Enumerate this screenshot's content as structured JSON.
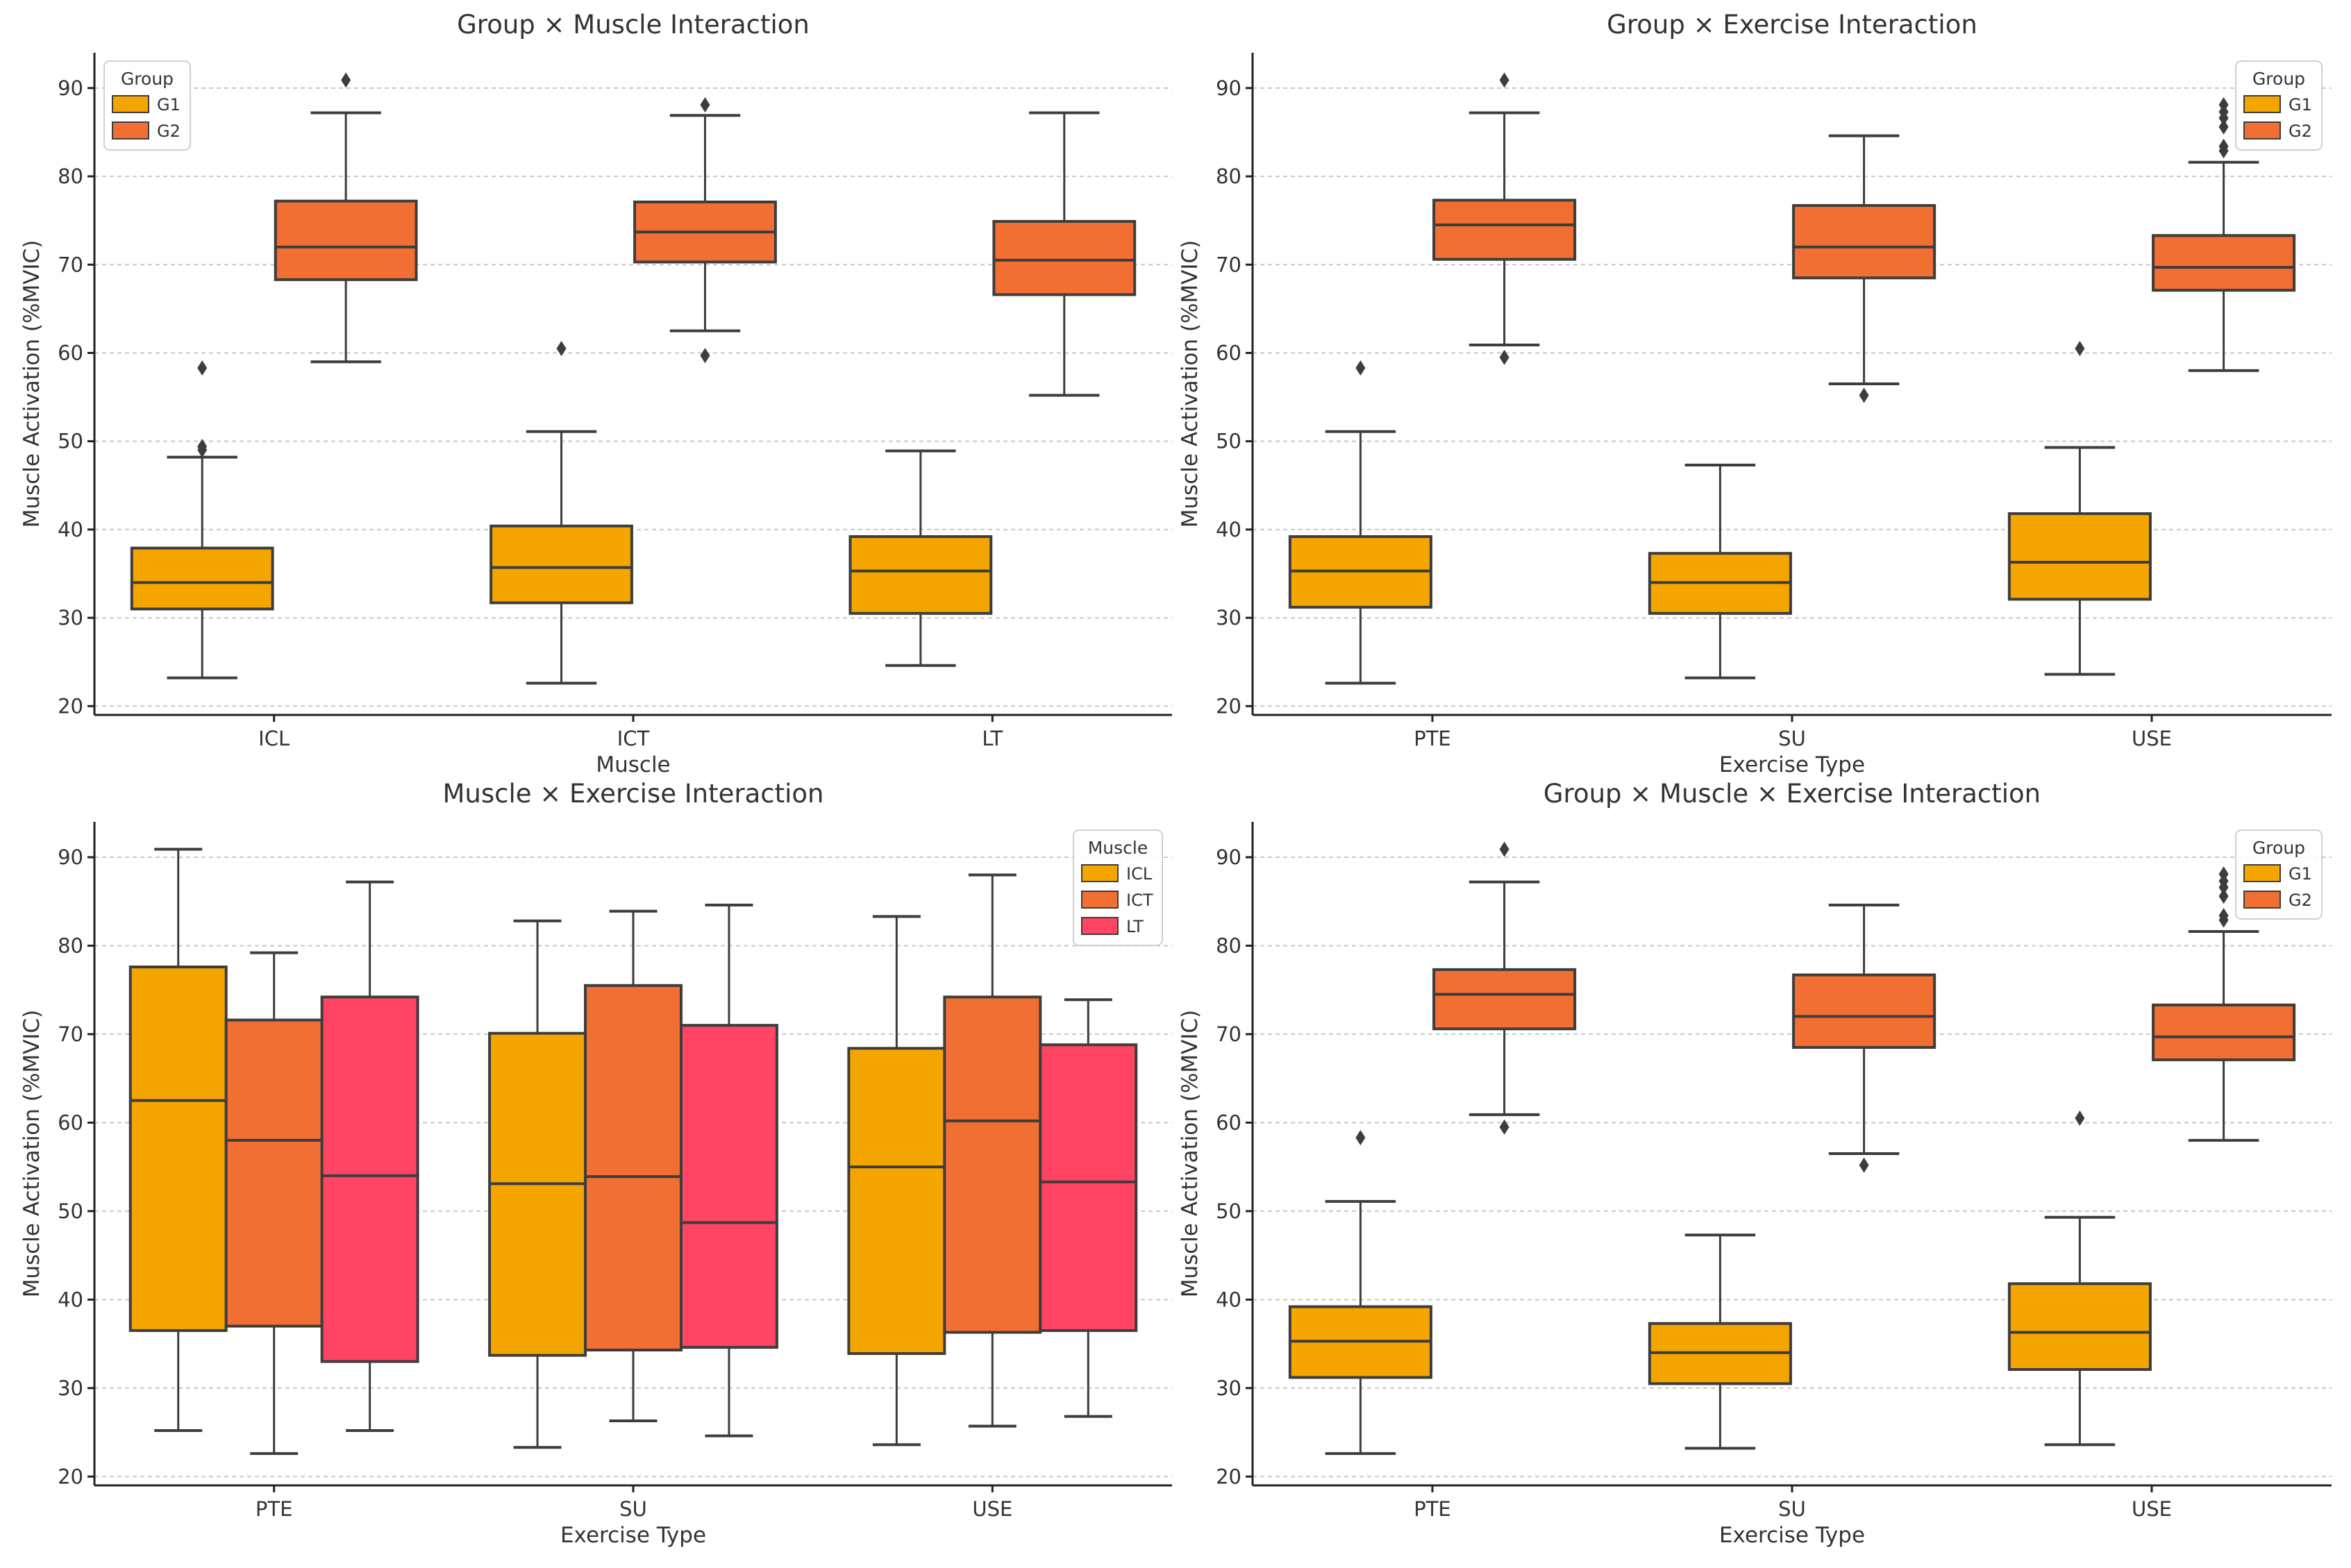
{
  "colors": {
    "G1": "#F5A500",
    "G2": "#F26F33",
    "ICL": "#F5A500",
    "ICT": "#F26F33",
    "LT": "#FF4563",
    "line": "#3d3d3d",
    "grid": "#c8c8c8"
  },
  "chart_data": [
    {
      "type": "box",
      "title": "Group × Muscle Interaction",
      "xlabel": "Muscle",
      "ylabel": "Muscle Activation (%MVIC)",
      "ylim": [
        19,
        94
      ],
      "yticks": [
        20,
        30,
        40,
        50,
        60,
        70,
        80,
        90
      ],
      "categories": [
        "ICL",
        "ICT",
        "LT"
      ],
      "legend": {
        "title": "Group",
        "position": "top-left",
        "entries": [
          "G1",
          "G2"
        ]
      },
      "series": [
        {
          "name": "G1",
          "boxes": [
            {
              "whislo": 23.2,
              "q1": 31.0,
              "med": 34.0,
              "q3": 37.9,
              "whishi": 48.2,
              "fliers": [
                49.0,
                49.4,
                58.3
              ]
            },
            {
              "whislo": 22.6,
              "q1": 31.7,
              "med": 35.7,
              "q3": 40.4,
              "whishi": 51.1,
              "fliers": [
                60.5
              ]
            },
            {
              "whislo": 24.6,
              "q1": 30.5,
              "med": 35.3,
              "q3": 39.2,
              "whishi": 48.9,
              "fliers": []
            }
          ]
        },
        {
          "name": "G2",
          "boxes": [
            {
              "whislo": 59.0,
              "q1": 68.3,
              "med": 72.0,
              "q3": 77.2,
              "whishi": 87.2,
              "fliers": [
                90.9
              ]
            },
            {
              "whislo": 62.5,
              "q1": 70.3,
              "med": 73.7,
              "q3": 77.1,
              "whishi": 86.9,
              "fliers": [
                59.7,
                88.1
              ]
            },
            {
              "whislo": 55.2,
              "q1": 66.6,
              "med": 70.5,
              "q3": 74.9,
              "whishi": 87.2,
              "fliers": []
            }
          ]
        }
      ]
    },
    {
      "type": "box",
      "title": "Group × Exercise Interaction",
      "xlabel": "Exercise Type",
      "ylabel": "Muscle Activation (%MVIC)",
      "ylim": [
        19,
        94
      ],
      "yticks": [
        20,
        30,
        40,
        50,
        60,
        70,
        80,
        90
      ],
      "categories": [
        "PTE",
        "SU",
        "USE"
      ],
      "legend": {
        "title": "Group",
        "position": "top-right",
        "entries": [
          "G1",
          "G2"
        ]
      },
      "series": [
        {
          "name": "G1",
          "boxes": [
            {
              "whislo": 22.6,
              "q1": 31.2,
              "med": 35.3,
              "q3": 39.2,
              "whishi": 51.1,
              "fliers": [
                58.3
              ]
            },
            {
              "whislo": 23.2,
              "q1": 30.5,
              "med": 34.0,
              "q3": 37.3,
              "whishi": 47.3,
              "fliers": []
            },
            {
              "whislo": 23.6,
              "q1": 32.1,
              "med": 36.3,
              "q3": 41.8,
              "whishi": 49.3,
              "fliers": [
                60.5
              ]
            }
          ]
        },
        {
          "name": "G2",
          "boxes": [
            {
              "whislo": 60.9,
              "q1": 70.6,
              "med": 74.5,
              "q3": 77.3,
              "whishi": 87.2,
              "fliers": [
                59.5,
                90.9
              ]
            },
            {
              "whislo": 56.5,
              "q1": 68.5,
              "med": 72.0,
              "q3": 76.7,
              "whishi": 84.6,
              "fliers": [
                55.2
              ]
            },
            {
              "whislo": 58.0,
              "q1": 67.1,
              "med": 69.7,
              "q3": 73.3,
              "whishi": 81.6,
              "fliers": [
                82.9,
                83.4,
                85.6,
                86.6,
                87.3,
                88.1
              ]
            }
          ]
        }
      ]
    },
    {
      "type": "box",
      "title": "Muscle × Exercise Interaction",
      "xlabel": "Exercise Type",
      "ylabel": "Muscle Activation (%MVIC)",
      "ylim": [
        19,
        94
      ],
      "yticks": [
        20,
        30,
        40,
        50,
        60,
        70,
        80,
        90
      ],
      "categories": [
        "PTE",
        "SU",
        "USE"
      ],
      "legend": {
        "title": "Muscle",
        "position": "top-right",
        "entries": [
          "ICL",
          "ICT",
          "LT"
        ]
      },
      "series": [
        {
          "name": "ICL",
          "boxes": [
            {
              "whislo": 25.2,
              "q1": 36.5,
              "med": 62.5,
              "q3": 77.6,
              "whishi": 90.9,
              "fliers": []
            },
            {
              "whislo": 23.3,
              "q1": 33.7,
              "med": 53.1,
              "q3": 70.1,
              "whishi": 82.8,
              "fliers": []
            },
            {
              "whislo": 23.6,
              "q1": 33.9,
              "med": 55.0,
              "q3": 68.4,
              "whishi": 83.3,
              "fliers": []
            }
          ]
        },
        {
          "name": "ICT",
          "boxes": [
            {
              "whislo": 22.6,
              "q1": 37.0,
              "med": 58.0,
              "q3": 71.6,
              "whishi": 79.2,
              "fliers": []
            },
            {
              "whislo": 26.3,
              "q1": 34.3,
              "med": 53.9,
              "q3": 75.5,
              "whishi": 83.9,
              "fliers": []
            },
            {
              "whislo": 25.7,
              "q1": 36.3,
              "med": 60.2,
              "q3": 74.2,
              "whishi": 88.0,
              "fliers": []
            }
          ]
        },
        {
          "name": "LT",
          "boxes": [
            {
              "whislo": 25.2,
              "q1": 33.0,
              "med": 54.0,
              "q3": 74.2,
              "whishi": 87.2,
              "fliers": []
            },
            {
              "whislo": 24.6,
              "q1": 34.6,
              "med": 48.7,
              "q3": 71.0,
              "whishi": 84.6,
              "fliers": []
            },
            {
              "whislo": 26.8,
              "q1": 36.5,
              "med": 53.3,
              "q3": 68.8,
              "whishi": 73.9,
              "fliers": []
            }
          ]
        }
      ]
    },
    {
      "type": "box",
      "title": "Group × Muscle × Exercise Interaction",
      "xlabel": "Exercise Type",
      "ylabel": "Muscle Activation (%MVIC)",
      "ylim": [
        19,
        94
      ],
      "yticks": [
        20,
        30,
        40,
        50,
        60,
        70,
        80,
        90
      ],
      "categories": [
        "PTE",
        "SU",
        "USE"
      ],
      "legend": {
        "title": "Group",
        "position": "top-right",
        "entries": [
          "G1",
          "G2"
        ]
      },
      "series": [
        {
          "name": "G1",
          "boxes": [
            {
              "whislo": 22.6,
              "q1": 31.2,
              "med": 35.3,
              "q3": 39.2,
              "whishi": 51.1,
              "fliers": [
                58.3
              ]
            },
            {
              "whislo": 23.2,
              "q1": 30.5,
              "med": 34.0,
              "q3": 37.3,
              "whishi": 47.3,
              "fliers": []
            },
            {
              "whislo": 23.6,
              "q1": 32.1,
              "med": 36.3,
              "q3": 41.8,
              "whishi": 49.3,
              "fliers": [
                60.5
              ]
            }
          ]
        },
        {
          "name": "G2",
          "boxes": [
            {
              "whislo": 60.9,
              "q1": 70.6,
              "med": 74.5,
              "q3": 77.3,
              "whishi": 87.2,
              "fliers": [
                59.5,
                90.9
              ]
            },
            {
              "whislo": 56.5,
              "q1": 68.5,
              "med": 72.0,
              "q3": 76.7,
              "whishi": 84.6,
              "fliers": [
                55.2
              ]
            },
            {
              "whislo": 58.0,
              "q1": 67.1,
              "med": 69.7,
              "q3": 73.3,
              "whishi": 81.6,
              "fliers": [
                82.9,
                83.4,
                85.6,
                86.6,
                87.3,
                88.1
              ]
            }
          ]
        }
      ]
    }
  ]
}
